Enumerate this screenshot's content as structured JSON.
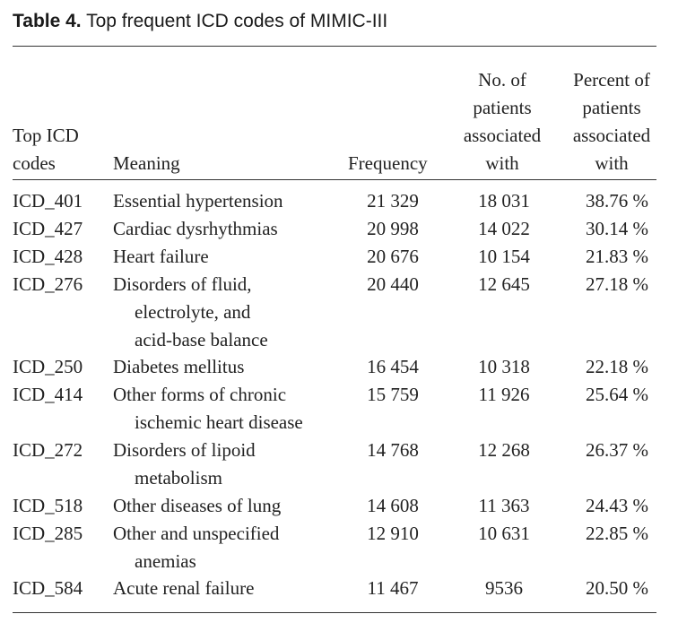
{
  "caption": {
    "label": "Table 4.",
    "text": " Top frequent ICD codes of MIMIC-III"
  },
  "columns": {
    "code": [
      "Top ICD",
      "codes"
    ],
    "meaning": "Meaning",
    "frequency": "Frequency",
    "patients": [
      "No. of",
      "patients",
      "associated",
      "with"
    ],
    "percent": [
      "Percent of",
      "patients",
      "associated",
      "with"
    ]
  },
  "rows": [
    {
      "code": "ICD_401",
      "meaning": [
        "Essential hypertension"
      ],
      "frequency": "21 329",
      "patients": "18 031",
      "percent": "38.76 %"
    },
    {
      "code": "ICD_427",
      "meaning": [
        "Cardiac dysrhythmias"
      ],
      "frequency": "20 998",
      "patients": "14 022",
      "percent": "30.14 %"
    },
    {
      "code": "ICD_428",
      "meaning": [
        "Heart failure"
      ],
      "frequency": "20 676",
      "patients": "10 154",
      "percent": "21.83 %"
    },
    {
      "code": "ICD_276",
      "meaning": [
        "Disorders of fluid,",
        "electrolyte, and",
        "acid-base balance"
      ],
      "frequency": "20 440",
      "patients": "12 645",
      "percent": "27.18 %"
    },
    {
      "code": "ICD_250",
      "meaning": [
        "Diabetes mellitus"
      ],
      "frequency": "16 454",
      "patients": "10 318",
      "percent": "22.18 %"
    },
    {
      "code": "ICD_414",
      "meaning": [
        "Other forms of chronic",
        "ischemic heart disease"
      ],
      "frequency": "15 759",
      "patients": "11 926",
      "percent": "25.64 %"
    },
    {
      "code": "ICD_272",
      "meaning": [
        "Disorders of lipoid",
        "metabolism"
      ],
      "frequency": "14 768",
      "patients": "12 268",
      "percent": "26.37 %"
    },
    {
      "code": "ICD_518",
      "meaning": [
        "Other diseases of lung"
      ],
      "frequency": "14 608",
      "patients": "11 363",
      "percent": "24.43 %"
    },
    {
      "code": "ICD_285",
      "meaning": [
        "Other and unspecified",
        "anemias"
      ],
      "frequency": "12 910",
      "patients": "10 631",
      "percent": "22.85 %"
    },
    {
      "code": "ICD_584",
      "meaning": [
        "Acute renal failure"
      ],
      "frequency": "11 467",
      "patients": "9536",
      "percent": "20.50 %"
    }
  ]
}
